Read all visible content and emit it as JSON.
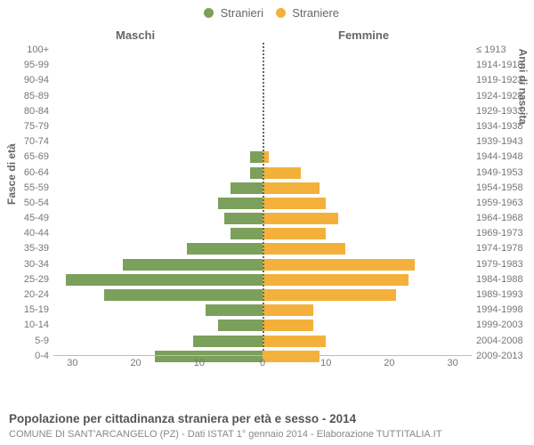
{
  "chart": {
    "type": "population-pyramid",
    "legend": {
      "male": {
        "label": "Stranieri",
        "color": "#7ba05b"
      },
      "female": {
        "label": "Straniere",
        "color": "#f3b13b"
      }
    },
    "columns": {
      "male": "Maschi",
      "female": "Femmine"
    },
    "y_left_title": "Fasce di età",
    "y_right_title": "Anni di nascita",
    "x_max": 33,
    "x_ticks": [
      30,
      20,
      10,
      0,
      10,
      20,
      30
    ],
    "bands": [
      {
        "age": "100+",
        "years": "≤ 1913",
        "m": 0,
        "f": 0
      },
      {
        "age": "95-99",
        "years": "1914-1918",
        "m": 0,
        "f": 0
      },
      {
        "age": "90-94",
        "years": "1919-1923",
        "m": 0,
        "f": 0
      },
      {
        "age": "85-89",
        "years": "1924-1928",
        "m": 0,
        "f": 0
      },
      {
        "age": "80-84",
        "years": "1929-1933",
        "m": 0,
        "f": 0
      },
      {
        "age": "75-79",
        "years": "1934-1938",
        "m": 0,
        "f": 0
      },
      {
        "age": "70-74",
        "years": "1939-1943",
        "m": 0,
        "f": 0
      },
      {
        "age": "65-69",
        "years": "1944-1948",
        "m": 2,
        "f": 1
      },
      {
        "age": "60-64",
        "years": "1949-1953",
        "m": 2,
        "f": 6
      },
      {
        "age": "55-59",
        "years": "1954-1958",
        "m": 5,
        "f": 9
      },
      {
        "age": "50-54",
        "years": "1959-1963",
        "m": 7,
        "f": 10
      },
      {
        "age": "45-49",
        "years": "1964-1968",
        "m": 6,
        "f": 12
      },
      {
        "age": "40-44",
        "years": "1969-1973",
        "m": 5,
        "f": 10
      },
      {
        "age": "35-39",
        "years": "1974-1978",
        "m": 12,
        "f": 13
      },
      {
        "age": "30-34",
        "years": "1979-1983",
        "m": 22,
        "f": 24
      },
      {
        "age": "25-29",
        "years": "1984-1988",
        "m": 31,
        "f": 23
      },
      {
        "age": "20-24",
        "years": "1989-1993",
        "m": 25,
        "f": 21
      },
      {
        "age": "15-19",
        "years": "1994-1998",
        "m": 9,
        "f": 8
      },
      {
        "age": "10-14",
        "years": "1999-2003",
        "m": 7,
        "f": 8
      },
      {
        "age": "5-9",
        "years": "2004-2008",
        "m": 11,
        "f": 10
      },
      {
        "age": "0-4",
        "years": "2009-2013",
        "m": 17,
        "f": 9
      }
    ],
    "caption": "Popolazione per cittadinanza straniera per età e sesso - 2014",
    "source": "COMUNE DI SANT'ARCANGELO (PZ) - Dati ISTAT 1° gennaio 2014 - Elaborazione TUTTITALIA.IT",
    "background_color": "#ffffff",
    "grid_color": "#bbbbbb",
    "label_color": "#777777",
    "label_fontsize": 11,
    "title_fontsize": 13.5
  }
}
